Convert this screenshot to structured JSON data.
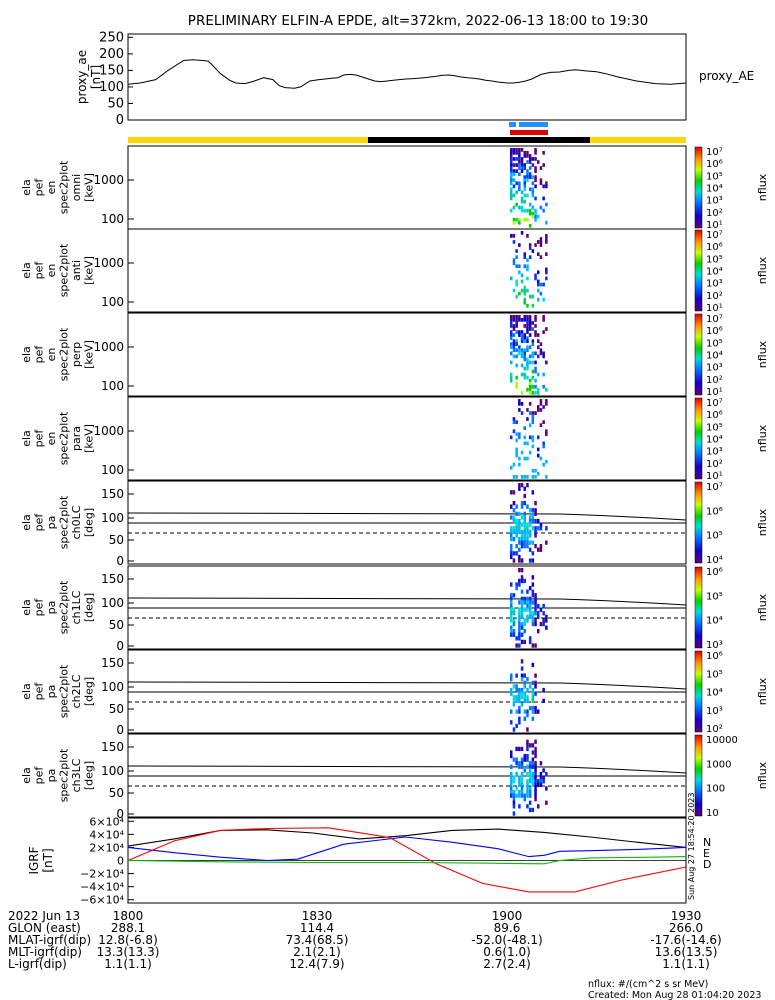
{
  "title": "PRELIMINARY ELFIN-A EPDE, alt=372km, 2022-06-13 18:00 to 19:30",
  "chart_data": [
    {
      "type": "line",
      "panel": "proxy_ae",
      "ylabel": [
        "proxy_ae",
        "[nT]"
      ],
      "series_label": "proxy_AE",
      "yticks": [
        "250",
        "200",
        "150",
        "100",
        "50",
        "0"
      ],
      "ylim": [
        0,
        260
      ],
      "x_minutes": [
        0,
        8,
        18,
        26,
        36,
        42,
        48,
        52,
        56,
        60,
        66,
        70,
        76,
        82,
        88,
        94,
        98,
        102,
        108,
        112,
        118,
        124,
        128,
        132,
        136,
        140,
        144,
        148,
        152,
        156,
        160,
        164,
        168,
        172,
        176,
        180,
        184,
        188,
        192,
        196,
        200,
        204,
        208,
        212,
        216,
        220,
        224,
        228,
        232,
        236,
        240,
        246,
        250,
        254,
        258,
        262,
        268,
        274,
        280,
        286,
        290,
        294,
        298,
        304,
        310,
        318,
        330,
        342,
        352,
        362
      ],
      "values": [
        108,
        112,
        122,
        150,
        180,
        182,
        180,
        178,
        160,
        140,
        120,
        112,
        110,
        118,
        128,
        122,
        104,
        98,
        96,
        100,
        118,
        122,
        124,
        126,
        128,
        136,
        138,
        136,
        130,
        124,
        118,
        116,
        118,
        120,
        122,
        124,
        125,
        126,
        128,
        130,
        132,
        135,
        136,
        134,
        130,
        128,
        126,
        124,
        120,
        118,
        115,
        112,
        112,
        114,
        118,
        124,
        138,
        144,
        145,
        150,
        152,
        150,
        148,
        146,
        140,
        130,
        118,
        110,
        108,
        112
      ]
    },
    {
      "type": "heatmap",
      "panel": "omni",
      "ylabel": [
        "ela",
        "pef",
        "en",
        "spec2plot",
        "omni",
        "[keV]"
      ],
      "ytick_labels": [
        "1000",
        "100"
      ],
      "colorbar": {
        "label": "nflux",
        "tick_labels": [
          "10⁷",
          "10⁶",
          "10⁵",
          "10⁴",
          "10³",
          "10²",
          "10¹"
        ]
      }
    },
    {
      "type": "heatmap",
      "panel": "anti",
      "ylabel": [
        "ela",
        "pef",
        "en",
        "spec2plot",
        "anti",
        "[keV]"
      ],
      "ytick_labels": [
        "1000",
        "100"
      ],
      "colorbar": {
        "label": "nflux",
        "tick_labels": [
          "10⁷",
          "10⁶",
          "10⁵",
          "10⁴",
          "10³",
          "10²",
          "10¹"
        ]
      }
    },
    {
      "type": "heatmap",
      "panel": "perp",
      "ylabel": [
        "ela",
        "pef",
        "en",
        "spec2plot",
        "perp",
        "[keV]"
      ],
      "ytick_labels": [
        "1000",
        "100"
      ],
      "colorbar": {
        "label": "nflux",
        "tick_labels": [
          "10⁷",
          "10⁶",
          "10⁵",
          "10⁴",
          "10³",
          "10²",
          "10¹"
        ]
      }
    },
    {
      "type": "heatmap",
      "panel": "para",
      "ylabel": [
        "ela",
        "pef",
        "en",
        "spec2plot",
        "para",
        "[keV]"
      ],
      "ytick_labels": [
        "1000",
        "100"
      ],
      "colorbar": {
        "label": "nflux",
        "tick_labels": [
          "10⁷",
          "10⁶",
          "10⁵",
          "10⁴",
          "10³",
          "10²",
          "10¹"
        ]
      }
    },
    {
      "type": "heatmap",
      "panel": "ch0LC",
      "ylabel": [
        "ela",
        "pef",
        "pa",
        "spec2plot",
        "ch0LC",
        "[deg]"
      ],
      "ytick_labels": [
        "150",
        "100",
        "50",
        "0"
      ],
      "colorbar": {
        "label": "nflux",
        "tick_labels": [
          "10⁷",
          "10⁶",
          "10⁵",
          "10⁴"
        ]
      }
    },
    {
      "type": "heatmap",
      "panel": "ch1LC",
      "ylabel": [
        "ela",
        "pef",
        "pa",
        "spec2plot",
        "ch1LC",
        "[deg]"
      ],
      "ytick_labels": [
        "150",
        "100",
        "50",
        "0"
      ],
      "colorbar": {
        "label": "nflux",
        "tick_labels": [
          "10⁶",
          "10⁵",
          "10⁴",
          "10³"
        ]
      }
    },
    {
      "type": "heatmap",
      "panel": "ch2LC",
      "ylabel": [
        "ela",
        "pef",
        "pa",
        "spec2plot",
        "ch2LC",
        "[deg]"
      ],
      "ytick_labels": [
        "150",
        "100",
        "50",
        "0"
      ],
      "colorbar": {
        "label": "nflux",
        "tick_labels": [
          "10⁶",
          "10⁵",
          "10⁴",
          "10³",
          "10²"
        ]
      }
    },
    {
      "type": "heatmap",
      "panel": "ch3LC",
      "ylabel": [
        "ela",
        "pef",
        "pa",
        "spec2plot",
        "ch3LC",
        "[deg]"
      ],
      "ytick_labels": [
        "150",
        "100",
        "50",
        "0"
      ],
      "colorbar": {
        "label": "nflux",
        "tick_labels": [
          "10000",
          "1000",
          "100",
          "10"
        ]
      }
    },
    {
      "type": "line",
      "panel": "IGRF",
      "ylabel": [
        "IGRF",
        "[nT]"
      ],
      "ytick_labels": [
        "6×10⁴",
        "4×10⁴",
        "2×10⁴",
        "0",
        "−2×10⁴",
        "−4×10⁴",
        "−6×10⁴"
      ],
      "ylim": [
        -65000,
        65000
      ],
      "legend": [
        "N",
        "E",
        "D"
      ],
      "series": [
        {
          "name": "N",
          "color": "#000000",
          "x_minutes": [
            0,
            30,
            60,
            90,
            120,
            150,
            180,
            210,
            240,
            270,
            300,
            330,
            362
          ],
          "values": [
            22000,
            33000,
            46000,
            47000,
            42000,
            33000,
            38000,
            46000,
            48000,
            43000,
            36000,
            28000,
            20000
          ]
        },
        {
          "name": "E",
          "color": "#0000ff",
          "x_minutes": [
            0,
            30,
            60,
            90,
            110,
            140,
            180,
            210,
            240,
            260,
            270,
            280,
            300,
            330,
            362
          ],
          "values": [
            20000,
            12000,
            5000,
            0,
            2000,
            25000,
            36000,
            28000,
            18000,
            6000,
            8000,
            14000,
            15000,
            17000,
            20000
          ]
        },
        {
          "name": "D",
          "color": "#ff0000",
          "x_minutes": [
            0,
            30,
            60,
            90,
            130,
            170,
            200,
            230,
            260,
            290,
            320,
            362
          ],
          "values": [
            0,
            30000,
            46000,
            49000,
            50000,
            35000,
            -5000,
            -35000,
            -48000,
            -48000,
            -30000,
            -10000
          ]
        },
        {
          "name": "green",
          "color": "#00c000",
          "x_minutes": [
            0,
            60,
            120,
            180,
            230,
            270,
            280,
            300,
            340,
            362
          ],
          "values": [
            0,
            -2000,
            -3000,
            -3000,
            -4000,
            -5000,
            0,
            4000,
            5000,
            6000
          ]
        }
      ]
    }
  ],
  "bottom_table": {
    "headers": [
      "2022 Jun 13",
      "1800",
      "1830",
      "1900",
      "1930"
    ],
    "rows": [
      [
        "GLON (east)",
        "288.1",
        "114.4",
        "89.6",
        "266.0"
      ],
      [
        "MLAT-igrf(dip)",
        "12.8(-6.8)",
        "73.4(68.5)",
        "-52.0(-48.1)",
        "-17.6(-14.6)"
      ],
      [
        "MLT-igrf(dip)",
        "13.3(13.3)",
        "2.1(2.1)",
        "0.6(1.0)",
        "13.6(13.5)"
      ],
      [
        "L-igrf(dip)",
        "1.1(1.1)",
        "12.4(7.9)",
        "2.7(2.4)",
        "1.1(1.1)"
      ]
    ]
  },
  "side_stamp": "Sun Aug 27 18:54:20 2023",
  "footer": {
    "units": "nflux: #/(cm^2 s sr MeV)",
    "created": "Created: Mon Aug 28 01:04:20 2023"
  }
}
